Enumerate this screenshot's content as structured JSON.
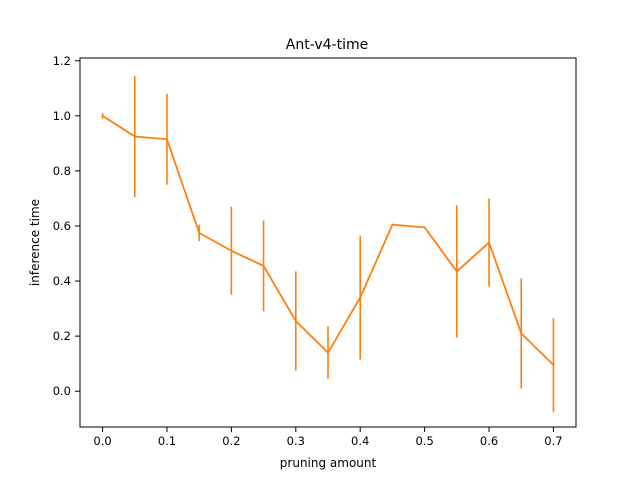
{
  "chart_data": {
    "type": "line",
    "title": "Ant-v4-time",
    "xlabel": "pruning amount",
    "ylabel": "inference time",
    "xlim": [
      -0.035,
      0.735
    ],
    "ylim": [
      -0.13,
      1.21
    ],
    "xticks": [
      0.0,
      0.1,
      0.2,
      0.3,
      0.4,
      0.5,
      0.6,
      0.7
    ],
    "xtick_labels": [
      "0.0",
      "0.1",
      "0.2",
      "0.3",
      "0.4",
      "0.5",
      "0.6",
      "0.7"
    ],
    "yticks": [
      0.0,
      0.2,
      0.4,
      0.6,
      0.8,
      1.0,
      1.2
    ],
    "ytick_labels": [
      "0.0",
      "0.2",
      "0.4",
      "0.6",
      "0.8",
      "1.0",
      "1.2"
    ],
    "grid": false,
    "legend": "none",
    "series": [
      {
        "color": "#ff7f0e",
        "x": [
          0.0,
          0.05,
          0.1,
          0.15,
          0.2,
          0.25,
          0.3,
          0.35,
          0.4,
          0.45,
          0.5,
          0.55,
          0.6,
          0.65,
          0.7
        ],
        "y": [
          1.0,
          0.925,
          0.915,
          0.575,
          0.51,
          0.455,
          0.255,
          0.14,
          0.34,
          0.605,
          0.595,
          0.435,
          0.54,
          0.21,
          0.095
        ],
        "yerr": [
          0.01,
          0.22,
          0.165,
          0.03,
          0.16,
          0.165,
          0.18,
          0.095,
          0.225,
          0.0,
          0.0,
          0.24,
          0.16,
          0.2,
          0.17
        ]
      }
    ]
  }
}
